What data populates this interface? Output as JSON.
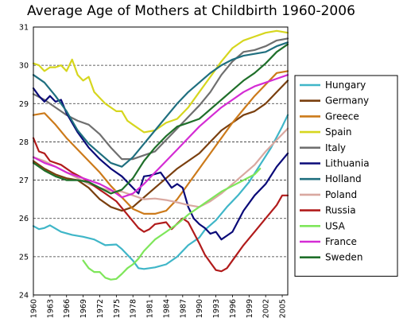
{
  "chart_data": {
    "type": "line",
    "title": "Average Age of Mothers at Childbirth 1960-2006",
    "xlabel": "",
    "ylabel": "",
    "xlim": [
      1960,
      2006
    ],
    "ylim": [
      24,
      31
    ],
    "x_ticks": [
      "1960",
      "1963",
      "1966",
      "1969",
      "1972",
      "1975",
      "1978",
      "1981",
      "1984",
      "1987",
      "1990",
      "1993",
      "1996",
      "1999",
      "2002",
      "2005"
    ],
    "y_ticks": [
      "24",
      "25",
      "26",
      "27",
      "28",
      "29",
      "30",
      "31"
    ],
    "grid": "horizontal-dashed",
    "legend": "right",
    "series": [
      {
        "name": "Hungary",
        "color": "#3fb6c8",
        "x": [
          1960,
          1961,
          1962,
          1963,
          1965,
          1967,
          1969,
          1971,
          1973,
          1975,
          1976,
          1978,
          1979,
          1980,
          1981,
          1982,
          1984,
          1986,
          1988,
          1990,
          1991,
          1993,
          1995,
          1997,
          1999,
          2001,
          2003,
          2005,
          2006
        ],
        "y": [
          25.8,
          25.72,
          25.75,
          25.82,
          25.65,
          25.57,
          25.52,
          25.45,
          25.3,
          25.32,
          25.2,
          24.9,
          24.7,
          24.68,
          24.7,
          24.72,
          24.8,
          25.0,
          25.3,
          25.5,
          25.7,
          25.95,
          26.3,
          26.6,
          26.95,
          27.4,
          27.85,
          28.4,
          28.7
        ]
      },
      {
        "name": "Germany",
        "color": "#7a3f0e",
        "x": [
          1960,
          1962,
          1964,
          1966,
          1968,
          1970,
          1972,
          1974,
          1976,
          1978,
          1980,
          1982,
          1984,
          1986,
          1988,
          1990,
          1992,
          1994,
          1996,
          1998,
          2000,
          2002,
          2004,
          2006
        ],
        "y": [
          27.5,
          27.3,
          27.15,
          27.05,
          27.0,
          26.8,
          26.5,
          26.3,
          26.2,
          26.3,
          26.55,
          26.8,
          27.05,
          27.3,
          27.5,
          27.7,
          28.0,
          28.3,
          28.5,
          28.7,
          28.8,
          29.0,
          29.3,
          29.6
        ]
      },
      {
        "name": "Greece",
        "color": "#cc7a1a",
        "x": [
          1960,
          1962,
          1964,
          1966,
          1968,
          1970,
          1972,
          1974,
          1976,
          1978,
          1980,
          1982,
          1984,
          1986,
          1988,
          1990,
          1992,
          1994,
          1996,
          1998,
          2000,
          2002,
          2004,
          2006
        ],
        "y": [
          28.7,
          28.75,
          28.45,
          28.1,
          27.8,
          27.5,
          27.2,
          26.85,
          26.55,
          26.25,
          26.12,
          26.12,
          26.2,
          26.5,
          26.9,
          27.3,
          27.7,
          28.1,
          28.5,
          28.85,
          29.2,
          29.5,
          29.8,
          29.85
        ]
      },
      {
        "name": "Spain",
        "color": "#d6d61e",
        "x": [
          1960,
          1961,
          1962,
          1963,
          1964,
          1965,
          1966,
          1967,
          1968,
          1969,
          1970,
          1971,
          1972,
          1973,
          1974,
          1975,
          1976,
          1977,
          1978,
          1980,
          1982,
          1984,
          1986,
          1988,
          1990,
          1992,
          1994,
          1996,
          1998,
          2000,
          2002,
          2004,
          2006
        ],
        "y": [
          30.05,
          30.0,
          29.85,
          29.95,
          29.95,
          30.0,
          29.85,
          30.15,
          29.75,
          29.6,
          29.7,
          29.3,
          29.15,
          29.0,
          28.9,
          28.8,
          28.8,
          28.55,
          28.45,
          28.25,
          28.3,
          28.5,
          28.6,
          28.9,
          29.3,
          29.7,
          30.1,
          30.45,
          30.65,
          30.75,
          30.85,
          30.9,
          30.85
        ]
      },
      {
        "name": "Italy",
        "color": "#6f6f6f",
        "x": [
          1960,
          1962,
          1964,
          1966,
          1968,
          1970,
          1972,
          1974,
          1976,
          1978,
          1980,
          1982,
          1984,
          1986,
          1988,
          1990,
          1992,
          1994,
          1996,
          1998,
          2000,
          2002,
          2004,
          2006
        ],
        "y": [
          29.25,
          29.1,
          28.9,
          28.7,
          28.55,
          28.45,
          28.2,
          27.85,
          27.55,
          27.55,
          27.65,
          27.75,
          28.05,
          28.35,
          28.65,
          28.95,
          29.3,
          29.75,
          30.1,
          30.35,
          30.4,
          30.5,
          30.65,
          30.7
        ]
      },
      {
        "name": "Lithuania",
        "color": "#0a0a78",
        "x": [
          1960,
          1961,
          1962,
          1963,
          1964,
          1965,
          1966,
          1968,
          1970,
          1972,
          1974,
          1976,
          1978,
          1979,
          1980,
          1981,
          1983,
          1984,
          1985,
          1986,
          1987,
          1988,
          1989,
          1990,
          1991,
          1992,
          1993,
          1994,
          1995,
          1996,
          1998,
          2000,
          2002,
          2004,
          2006
        ],
        "y": [
          29.4,
          29.2,
          29.05,
          29.2,
          29.05,
          29.1,
          28.75,
          28.25,
          27.85,
          27.55,
          27.3,
          27.1,
          26.8,
          26.65,
          27.1,
          27.12,
          27.2,
          27.0,
          26.8,
          26.9,
          26.8,
          26.3,
          26.0,
          25.85,
          25.75,
          25.6,
          25.65,
          25.45,
          25.55,
          25.65,
          26.2,
          26.6,
          26.9,
          27.35,
          27.7
        ]
      },
      {
        "name": "Holland",
        "color": "#1f6f7f",
        "x": [
          1960,
          1962,
          1964,
          1966,
          1968,
          1970,
          1972,
          1974,
          1976,
          1978,
          1980,
          1982,
          1984,
          1986,
          1988,
          1990,
          1992,
          1994,
          1996,
          1998,
          2000,
          2002,
          2004,
          2006
        ],
        "y": [
          29.75,
          29.55,
          29.2,
          28.8,
          28.3,
          27.95,
          27.7,
          27.45,
          27.35,
          27.6,
          27.95,
          28.3,
          28.65,
          29.0,
          29.3,
          29.55,
          29.8,
          30.0,
          30.15,
          30.25,
          30.3,
          30.35,
          30.5,
          30.6
        ]
      },
      {
        "name": "Poland",
        "color": "#d9a8a0",
        "x": [
          1960,
          1962,
          1964,
          1966,
          1968,
          1970,
          1972,
          1974,
          1976,
          1978,
          1980,
          1982,
          1984,
          1986,
          1988,
          1990,
          1992,
          1994,
          1996,
          1998,
          2000,
          2002,
          2004,
          2006
        ],
        "y": [
          27.6,
          27.5,
          27.35,
          27.2,
          27.05,
          26.9,
          26.8,
          26.72,
          26.7,
          26.6,
          26.5,
          26.52,
          26.48,
          26.42,
          26.35,
          26.3,
          26.45,
          26.65,
          26.9,
          27.15,
          27.4,
          27.75,
          28.05,
          28.35
        ]
      },
      {
        "name": "Russia",
        "color": "#b11b1b",
        "x": [
          1960,
          1961,
          1962,
          1963,
          1965,
          1967,
          1969,
          1971,
          1973,
          1975,
          1977,
          1979,
          1980,
          1981,
          1982,
          1984,
          1985,
          1987,
          1988,
          1990,
          1991,
          1992,
          1993,
          1994,
          1995,
          1996,
          1998,
          2000,
          2002,
          2004,
          2005,
          2006
        ],
        "y": [
          28.1,
          27.75,
          27.7,
          27.5,
          27.4,
          27.2,
          27.05,
          26.85,
          26.65,
          26.45,
          26.1,
          25.75,
          25.65,
          25.72,
          25.85,
          25.9,
          25.72,
          26.0,
          25.9,
          25.35,
          25.05,
          24.85,
          24.65,
          24.62,
          24.7,
          24.9,
          25.3,
          25.65,
          26.0,
          26.35,
          26.6,
          26.6
        ]
      },
      {
        "name": "USA",
        "color": "#7ee65a",
        "x": [
          1969,
          1970,
          1971,
          1972,
          1973,
          1974,
          1975,
          1976,
          1977,
          1978,
          1979,
          1980,
          1981,
          1982,
          1984,
          1986,
          1988,
          1990,
          1992,
          1994,
          1996,
          1998,
          2000,
          2001
        ],
        "y": [
          24.9,
          24.7,
          24.6,
          24.6,
          24.45,
          24.4,
          24.42,
          24.55,
          24.7,
          24.8,
          24.95,
          25.15,
          25.3,
          25.45,
          25.65,
          25.85,
          26.1,
          26.3,
          26.5,
          26.7,
          26.85,
          27.0,
          27.15,
          27.3
        ]
      },
      {
        "name": "France",
        "color": "#d42cd4",
        "x": [
          1960,
          1962,
          1964,
          1966,
          1968,
          1970,
          1972,
          1974,
          1976,
          1978,
          1980,
          1982,
          1984,
          1986,
          1988,
          1990,
          1992,
          1994,
          1996,
          1998,
          2000,
          2002,
          2004,
          2006
        ],
        "y": [
          27.6,
          27.45,
          27.35,
          27.2,
          27.1,
          27.0,
          26.9,
          26.75,
          26.55,
          26.65,
          26.9,
          27.2,
          27.5,
          27.8,
          28.1,
          28.4,
          28.65,
          28.9,
          29.1,
          29.3,
          29.45,
          29.55,
          29.65,
          29.75
        ]
      },
      {
        "name": "Sweden",
        "color": "#1f6f2a",
        "x": [
          1960,
          1962,
          1964,
          1966,
          1968,
          1970,
          1972,
          1974,
          1976,
          1978,
          1980,
          1982,
          1984,
          1986,
          1988,
          1990,
          1992,
          1994,
          1996,
          1998,
          2000,
          2002,
          2004,
          2006
        ],
        "y": [
          27.45,
          27.25,
          27.1,
          27.0,
          27.0,
          26.95,
          26.8,
          26.65,
          26.75,
          27.05,
          27.5,
          27.85,
          28.15,
          28.4,
          28.5,
          28.6,
          28.85,
          29.1,
          29.35,
          29.6,
          29.8,
          30.05,
          30.35,
          30.55
        ]
      }
    ]
  }
}
